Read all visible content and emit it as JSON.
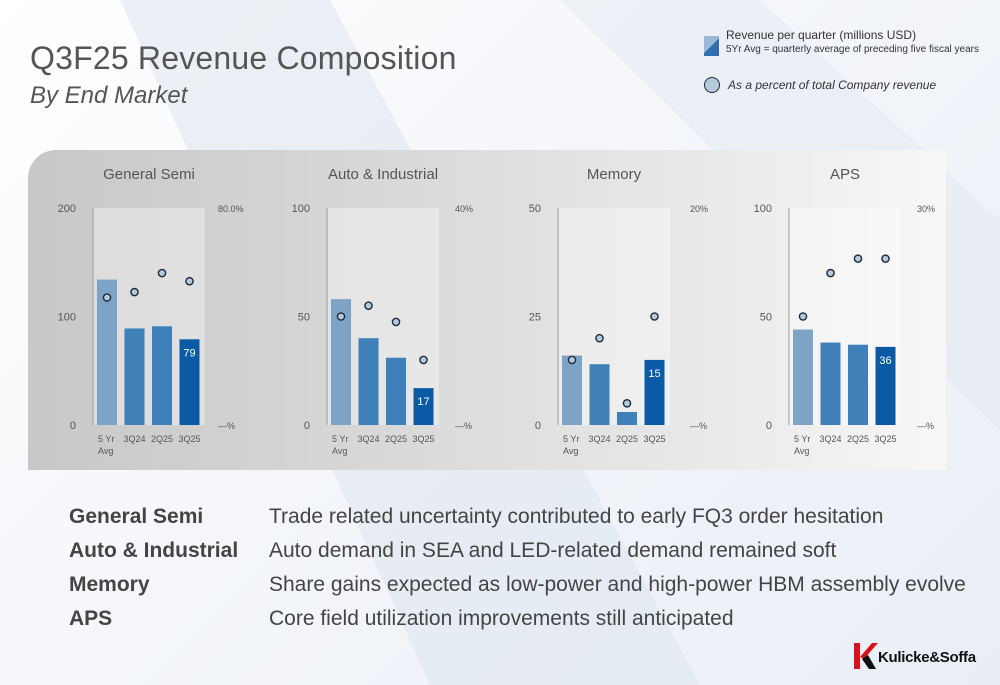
{
  "slide": {
    "title": "Q3F25 Revenue Composition",
    "subtitle": "By End Market"
  },
  "legend": {
    "revenue_label": "Revenue per quarter (millions USD)",
    "revenue_note": "5Yr Avg = quarterly average of preceding five fiscal years",
    "percent_label": "As a percent of total Company revenue"
  },
  "colors": {
    "avg_bar": "#7da4c6",
    "quarter_bar": "#3f80b8",
    "current_bar": "#0b5aa6",
    "marker_fill": "#b7c9dc",
    "marker_stroke": "#1c2a3a"
  },
  "chart_data": [
    {
      "type": "bar",
      "title": "General Semi",
      "categories": [
        "5 Yr Avg",
        "3Q24",
        "2Q25",
        "3Q25"
      ],
      "values": [
        134,
        89,
        91,
        79
      ],
      "ylim": [
        0,
        200
      ],
      "y_ticks": [
        "0",
        "100",
        "200"
      ],
      "pct_ticks": [
        "—%",
        "80.0%"
      ],
      "pct_max": 80,
      "pct_values": [
        47,
        49,
        56,
        53
      ],
      "data_labels": [
        "",
        "",
        "",
        "79"
      ]
    },
    {
      "type": "bar",
      "title": "Auto & Industrial",
      "categories": [
        "5 Yr Avg",
        "3Q24",
        "2Q25",
        "3Q25"
      ],
      "values": [
        58,
        40,
        31,
        17
      ],
      "ylim": [
        0,
        100
      ],
      "y_ticks": [
        "0",
        "50",
        "100"
      ],
      "pct_ticks": [
        "—%",
        "40%"
      ],
      "pct_max": 40,
      "pct_values": [
        20,
        22,
        19,
        12
      ],
      "data_labels": [
        "",
        "",
        "",
        "17"
      ]
    },
    {
      "type": "bar",
      "title": "Memory",
      "categories": [
        "5 Yr Avg",
        "3Q24",
        "2Q25",
        "3Q25"
      ],
      "values": [
        16,
        14,
        3,
        15
      ],
      "ylim": [
        0,
        50
      ],
      "y_ticks": [
        "0",
        "25",
        "50"
      ],
      "pct_ticks": [
        "—%",
        "20%"
      ],
      "pct_max": 20,
      "pct_values": [
        6,
        8,
        2,
        10
      ],
      "data_labels": [
        "",
        "",
        "",
        "15"
      ]
    },
    {
      "type": "bar",
      "title": "APS",
      "categories": [
        "5 Yr Avg",
        "3Q24",
        "2Q25",
        "3Q25"
      ],
      "values": [
        44,
        38,
        37,
        36
      ],
      "ylim": [
        0,
        100
      ],
      "y_ticks": [
        "0",
        "50",
        "100"
      ],
      "pct_ticks": [
        "—%",
        "30%"
      ],
      "pct_max": 30,
      "pct_values": [
        15,
        21,
        23,
        23
      ],
      "data_labels": [
        "",
        "",
        "",
        "36"
      ]
    }
  ],
  "commentary": [
    {
      "label": "General Semi",
      "text": "Trade related uncertainty contributed to early FQ3 order hesitation"
    },
    {
      "label": "Auto & Industrial",
      "text": "Auto demand in SEA and LED-related demand remained soft"
    },
    {
      "label": "Memory",
      "text": "Share gains expected as low-power and high-power HBM assembly evolve"
    },
    {
      "label": "APS",
      "text": "Core field utilization improvements still anticipated"
    }
  ],
  "logo": {
    "name": "Kulicke&Soffa"
  }
}
